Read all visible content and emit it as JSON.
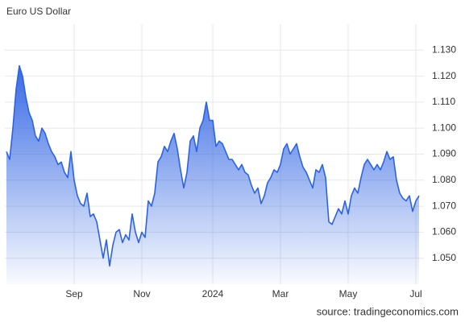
{
  "chart_data": {
    "type": "area",
    "title": "Euro US Dollar",
    "source": "source: tradingeconomics.com",
    "categories": [
      null,
      null,
      null,
      null,
      null,
      null,
      null,
      null,
      null,
      null,
      null,
      null,
      null,
      null,
      null,
      null,
      null,
      null,
      null,
      null,
      null,
      "Sep",
      null,
      null,
      null,
      null,
      null,
      null,
      null,
      null,
      null,
      null,
      null,
      null,
      null,
      null,
      null,
      null,
      null,
      null,
      null,
      null,
      "Nov",
      null,
      null,
      null,
      null,
      null,
      null,
      null,
      null,
      null,
      null,
      null,
      null,
      null,
      null,
      null,
      null,
      null,
      null,
      null,
      null,
      null,
      "2024",
      null,
      null,
      null,
      null,
      null,
      null,
      null,
      null,
      null,
      null,
      null,
      null,
      null,
      null,
      null,
      null,
      null,
      null,
      null,
      null,
      "Mar",
      null,
      null,
      null,
      null,
      null,
      null,
      null,
      null,
      null,
      null,
      null,
      null,
      null,
      null,
      null,
      null,
      null,
      null,
      null,
      null,
      "May",
      null,
      null,
      null,
      null,
      null,
      null,
      null,
      null,
      null,
      null,
      null,
      null,
      null,
      null,
      null,
      null,
      null,
      null,
      null,
      null,
      "Jul",
      null
    ],
    "series": [
      {
        "color": "#2d62e3",
        "values": [
          1.091,
          1.088,
          1.1,
          1.115,
          1.124,
          1.12,
          1.112,
          1.106,
          1.103,
          1.097,
          1.095,
          1.1,
          1.098,
          1.094,
          1.091,
          1.089,
          1.086,
          1.087,
          1.083,
          1.081,
          1.091,
          1.08,
          1.074,
          1.071,
          1.07,
          1.075,
          1.066,
          1.067,
          1.064,
          1.057,
          1.05,
          1.057,
          1.047,
          1.055,
          1.06,
          1.061,
          1.056,
          1.059,
          1.057,
          1.067,
          1.06,
          1.056,
          1.06,
          1.058,
          1.072,
          1.07,
          1.075,
          1.087,
          1.089,
          1.093,
          1.091,
          1.095,
          1.098,
          1.092,
          1.084,
          1.077,
          1.083,
          1.095,
          1.097,
          1.091,
          1.1,
          1.103,
          1.11,
          1.103,
          1.103,
          1.093,
          1.095,
          1.094,
          1.091,
          1.088,
          1.088,
          1.086,
          1.084,
          1.086,
          1.083,
          1.082,
          1.078,
          1.075,
          1.077,
          1.071,
          1.074,
          1.079,
          1.081,
          1.084,
          1.083,
          1.086,
          1.092,
          1.094,
          1.09,
          1.092,
          1.094,
          1.089,
          1.085,
          1.083,
          1.08,
          1.077,
          1.084,
          1.083,
          1.086,
          1.081,
          1.064,
          1.063,
          1.066,
          1.069,
          1.067,
          1.072,
          1.067,
          1.074,
          1.077,
          1.075,
          1.081,
          1.086,
          1.088,
          1.086,
          1.084,
          1.086,
          1.084,
          1.087,
          1.091,
          1.088,
          1.089,
          1.08,
          1.075,
          1.073,
          1.072,
          1.074,
          1.068,
          1.072,
          1.074
        ]
      }
    ],
    "ylim": [
      1.04,
      1.14
    ],
    "yticks": [
      {
        "value": 1.05,
        "label": "1.050"
      },
      {
        "value": 1.06,
        "label": "1.060"
      },
      {
        "value": 1.07,
        "label": "1.070"
      },
      {
        "value": 1.08,
        "label": "1.080"
      },
      {
        "value": 1.09,
        "label": "1.090"
      },
      {
        "value": 1.1,
        "label": "1.100"
      },
      {
        "value": 1.11,
        "label": "1.110"
      },
      {
        "value": 1.12,
        "label": "1.120"
      },
      {
        "value": 1.13,
        "label": "1.130"
      }
    ],
    "grid": true
  }
}
